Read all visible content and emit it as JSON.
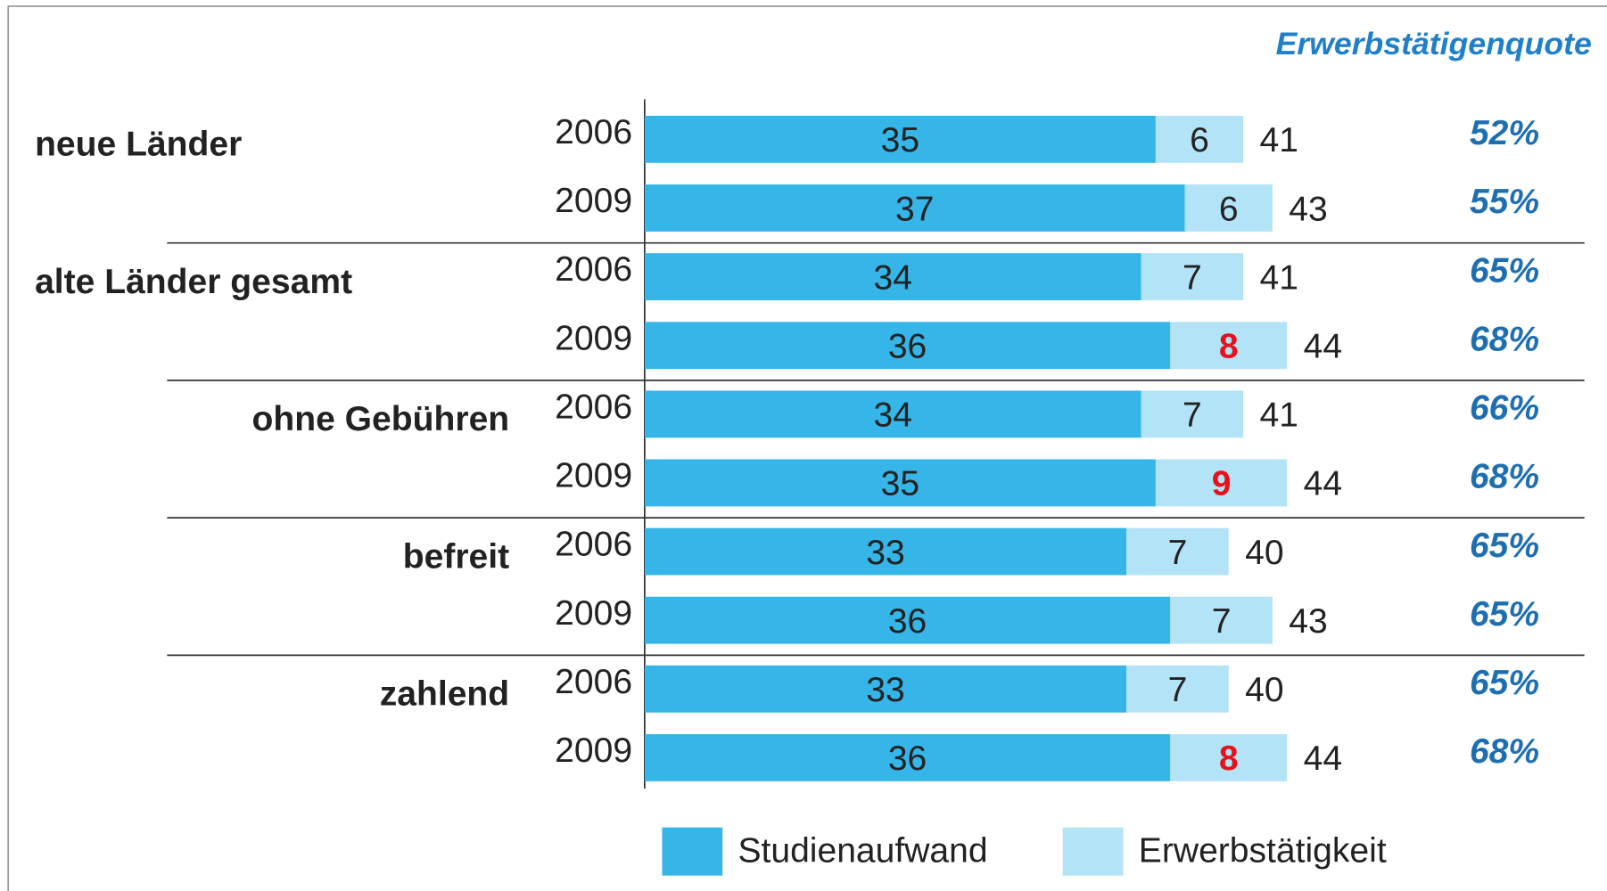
{
  "chart_data": {
    "type": "stacked-bar-horizontal",
    "groups": [
      "neue Länder",
      null,
      "alte Länder gesamt",
      null,
      "ohne Gebühren",
      null,
      "befreit",
      null,
      "zahlend",
      null
    ],
    "categories": [
      "2006",
      "2009",
      "2006",
      "2009",
      "2006",
      "2009",
      "2006",
      "2009",
      "2006",
      "2009"
    ],
    "series": [
      {
        "name": "Studienaufwand",
        "color": "#35b5e8",
        "values": [
          35,
          37,
          34,
          36,
          34,
          35,
          33,
          36,
          33,
          36
        ]
      },
      {
        "name": "Erwerbstätigkeit",
        "color": "#b3e3f7",
        "values": [
          6,
          6,
          7,
          8,
          7,
          9,
          7,
          7,
          7,
          8
        ],
        "label_colors": [
          "#222222",
          "#222222",
          "#222222",
          "#e8101a",
          "#222222",
          "#e8101a",
          "#222222",
          "#222222",
          "#222222",
          "#e8101a"
        ]
      }
    ],
    "totals": [
      41,
      43,
      41,
      44,
      41,
      44,
      40,
      43,
      40,
      44
    ],
    "quote": {
      "title": "Erwerbstätigenquote",
      "color": "#1f6fb0",
      "values": [
        52,
        55,
        65,
        68,
        66,
        68,
        65,
        65,
        65,
        68
      ],
      "value_labels": [
        "52%",
        "55%",
        "65%",
        "68%",
        "66%",
        "68%",
        "65%",
        "65%",
        "65%",
        "68%"
      ]
    },
    "xlim": [
      0,
      65
    ]
  }
}
